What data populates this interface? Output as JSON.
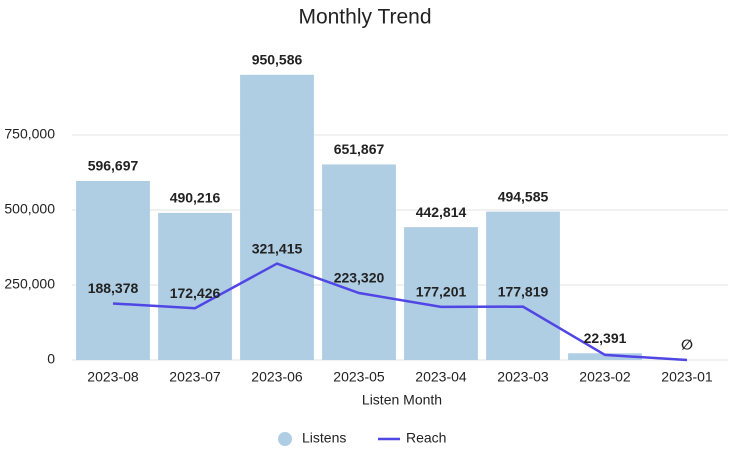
{
  "chart_data": {
    "type": "bar_line",
    "title": "Monthly Trend",
    "x_label": "Listen Month",
    "categories": [
      "2023-08",
      "2023-07",
      "2023-06",
      "2023-05",
      "2023-04",
      "2023-03",
      "2023-02",
      "2023-01"
    ],
    "series": [
      {
        "name": "Listens",
        "type": "bar",
        "color": "#afcde3",
        "values": [
          596697,
          490216,
          950586,
          651867,
          442814,
          494585,
          22391,
          null
        ],
        "value_labels": [
          "596,697",
          "490,216",
          "950,586",
          "651,867",
          "442,814",
          "494,585",
          "22,391",
          null
        ]
      },
      {
        "name": "Reach",
        "type": "line",
        "color": "#5046e5",
        "values": [
          188378,
          172426,
          321415,
          223320,
          177201,
          177819,
          17000,
          0
        ],
        "value_labels": [
          "188,378",
          "172,426",
          "321,415",
          "223,320",
          "177,201",
          "177,819",
          null,
          "∅"
        ]
      }
    ],
    "ylim": [
      0,
      1000000
    ],
    "yticks": [
      0,
      {
        "value": 250000,
        "label": "250,000"
      },
      {
        "value": 500000,
        "label": "500,000"
      },
      {
        "value": 750000,
        "label": "750,000"
      }
    ],
    "grid": true,
    "legend": "bottom"
  }
}
